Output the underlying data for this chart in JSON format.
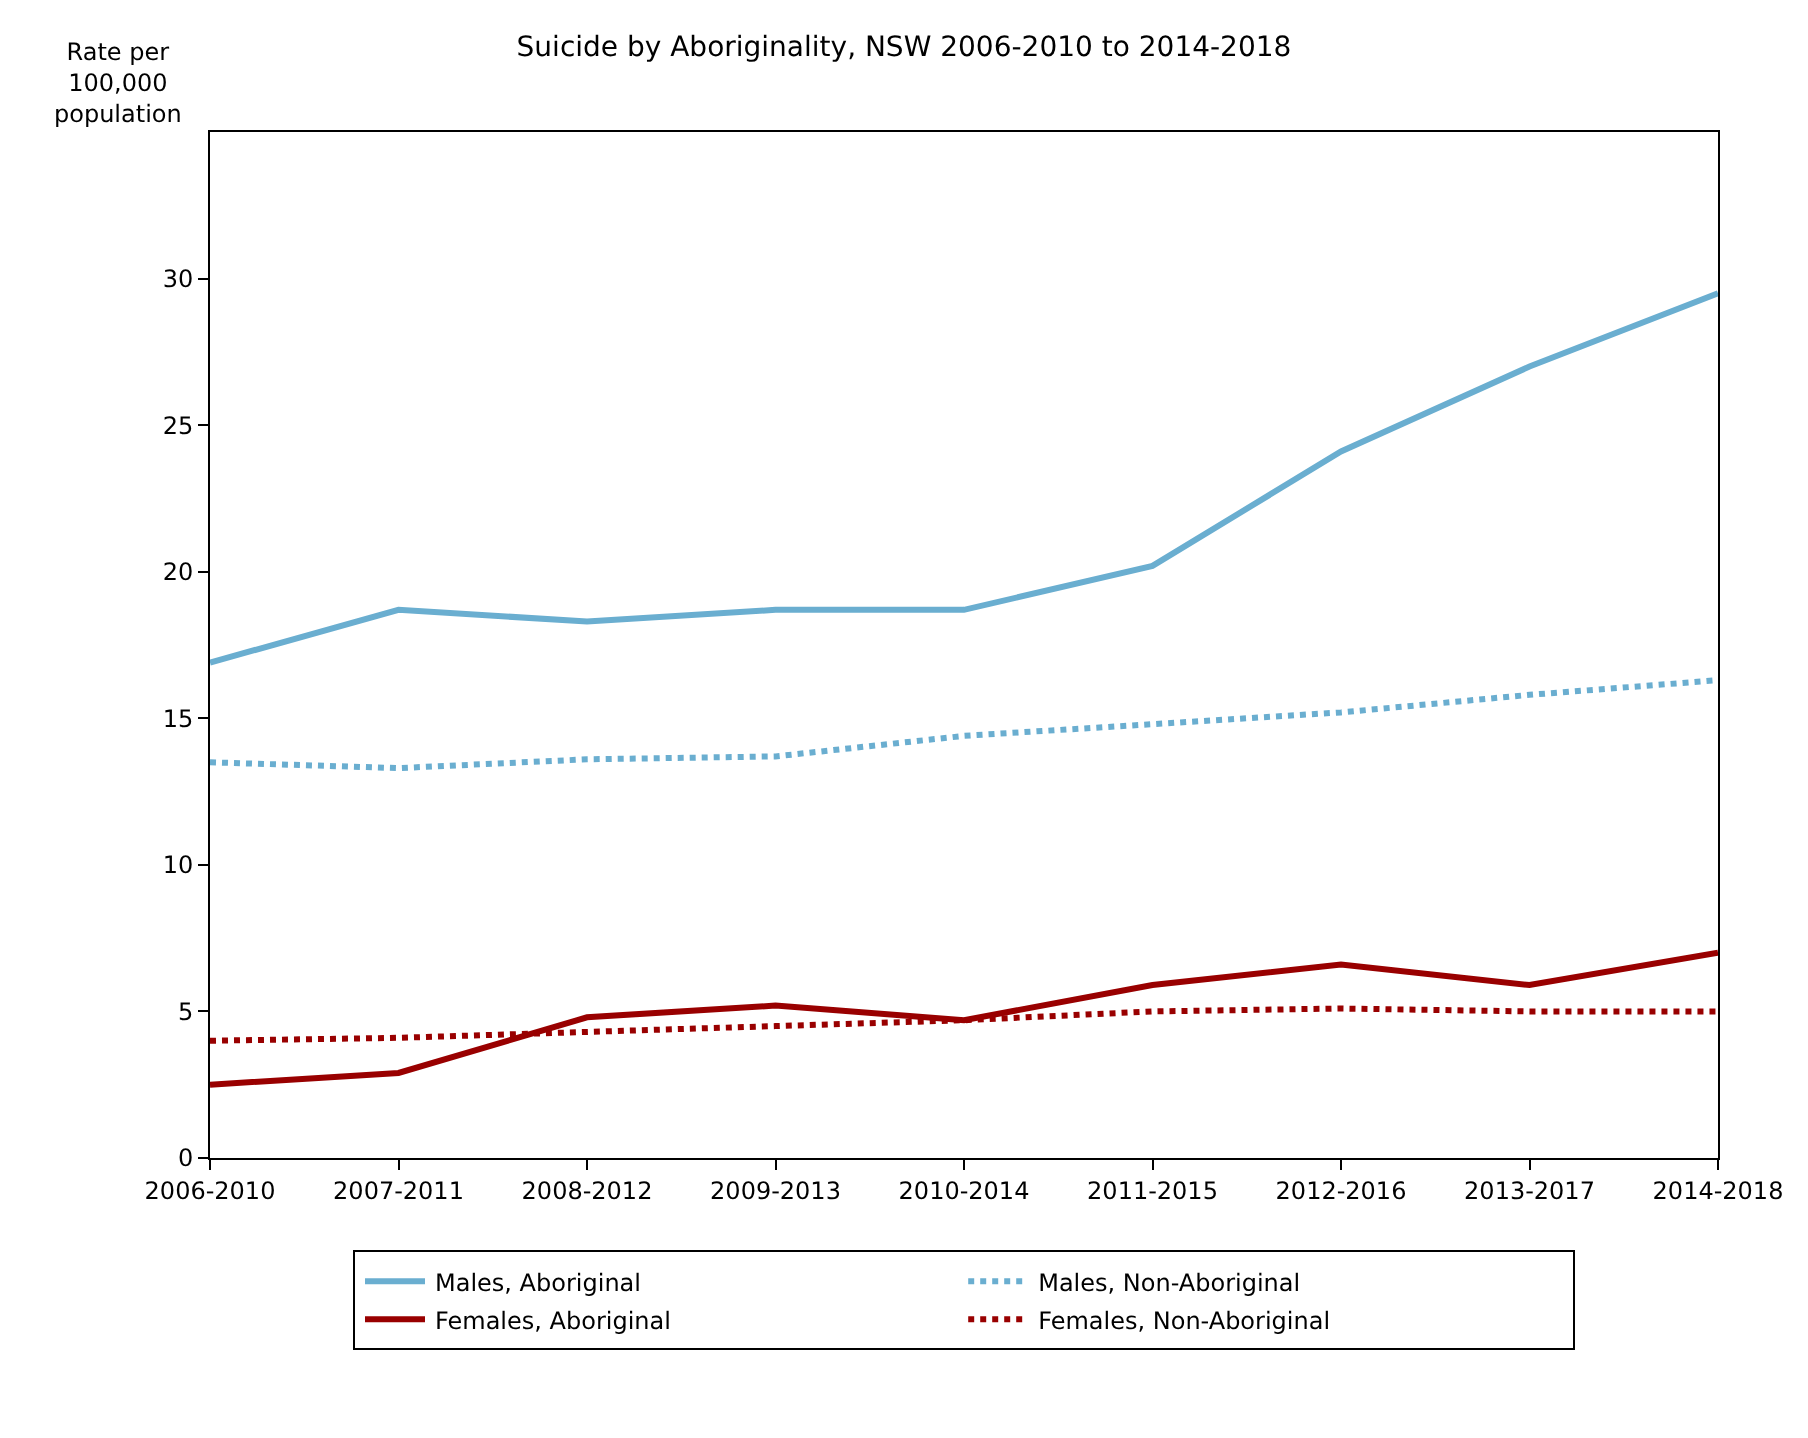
{
  "chart_data": {
    "type": "line",
    "title": "Suicide by Aboriginality, NSW 2006-2010 to 2014-2018",
    "ylabel": "Rate per 100,000 population",
    "categories": [
      "2006-2010",
      "2007-2011",
      "2008-2012",
      "2009-2013",
      "2010-2014",
      "2011-2015",
      "2012-2016",
      "2013-2017",
      "2014-2018"
    ],
    "series": [
      {
        "name": "Males, Aboriginal",
        "color": "#6aaed0",
        "line_style": "solid",
        "values": [
          16.9,
          18.7,
          18.3,
          18.7,
          18.7,
          20.2,
          24.1,
          27.0,
          29.5
        ]
      },
      {
        "name": "Males, Non-Aboriginal",
        "color": "#6aaed0",
        "line_style": "dotted",
        "values": [
          13.5,
          13.3,
          13.6,
          13.7,
          14.4,
          14.8,
          15.2,
          15.8,
          16.3
        ]
      },
      {
        "name": "Females, Aboriginal",
        "color": "#990000",
        "line_style": "solid",
        "values": [
          2.5,
          2.9,
          4.8,
          5.2,
          4.7,
          5.9,
          6.6,
          5.9,
          7.0
        ]
      },
      {
        "name": "Females, Non-Aboriginal",
        "color": "#990000",
        "line_style": "dotted",
        "values": [
          4.0,
          4.1,
          4.3,
          4.5,
          4.7,
          5.0,
          5.1,
          5.0,
          5.0
        ]
      }
    ],
    "ylim": [
      0,
      35
    ],
    "yticks": [
      0,
      5,
      10,
      15,
      20,
      25,
      30
    ],
    "legend": "bottom",
    "marker": "none"
  }
}
